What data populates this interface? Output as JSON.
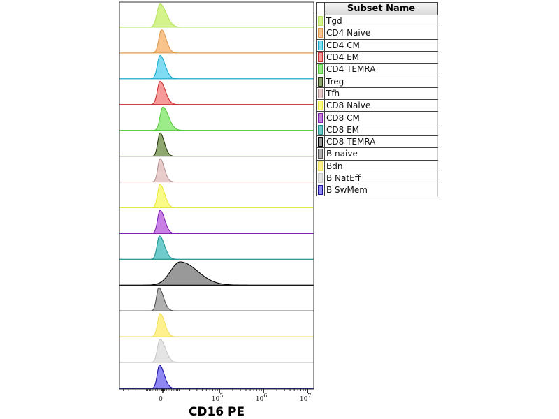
{
  "chart_data": {
    "type": "histogram-overlay",
    "xlabel": "CD16 PE",
    "x_scale": "biexponential",
    "x_ticks": [
      {
        "value": 0,
        "label": "0"
      },
      {
        "value": 100000,
        "base": "10",
        "exp": "5"
      },
      {
        "value": 1000000,
        "base": "10",
        "exp": "6"
      },
      {
        "value": 10000000,
        "base": "10",
        "exp": "7"
      }
    ],
    "legend_title": "Subset Name",
    "series": [
      {
        "name": "Tgd",
        "mode": -1500,
        "left_sd": 0.16,
        "right_sd": 0.32,
        "fill": "#d4f38a",
        "line": "#b5e35a"
      },
      {
        "name": "CD4 Naive",
        "mode": -700,
        "left_sd": 0.14,
        "right_sd": 0.24,
        "fill": "#f8c48c",
        "line": "#e0964a"
      },
      {
        "name": "CD4 CM",
        "mode": -1500,
        "left_sd": 0.14,
        "right_sd": 0.26,
        "fill": "#7fdcf2",
        "line": "#1aa8cc"
      },
      {
        "name": "CD4 EM",
        "mode": -1500,
        "left_sd": 0.14,
        "right_sd": 0.27,
        "fill": "#f79a9a",
        "line": "#c83030"
      },
      {
        "name": "CD4 TEMRA",
        "mode": 0,
        "left_sd": 0.14,
        "right_sd": 0.3,
        "fill": "#9dec8a",
        "line": "#55c83a"
      },
      {
        "name": "Treg",
        "mode": -1500,
        "left_sd": 0.12,
        "right_sd": 0.22,
        "fill": "#8ea870",
        "line": "#2a3a10"
      },
      {
        "name": "Tfh",
        "mode": -1500,
        "left_sd": 0.12,
        "right_sd": 0.22,
        "fill": "#e8cccc",
        "line": "#b09090"
      },
      {
        "name": "CD8 Naive",
        "mode": -1500,
        "left_sd": 0.13,
        "right_sd": 0.24,
        "fill": "#fafa88",
        "line": "#e8e840"
      },
      {
        "name": "CD8 CM",
        "mode": -1500,
        "left_sd": 0.13,
        "right_sd": 0.24,
        "fill": "#c880e4",
        "line": "#8020b0"
      },
      {
        "name": "CD8 EM",
        "mode": -1800,
        "left_sd": 0.13,
        "right_sd": 0.26,
        "fill": "#70cccc",
        "line": "#209090"
      },
      {
        "name": "CD8 TEMRA",
        "mode": 10800,
        "left_sd": 0.5,
        "right_sd": 0.9,
        "fill": "#999999",
        "line": "#000000"
      },
      {
        "name": "B naive",
        "mode": -2200,
        "left_sd": 0.12,
        "right_sd": 0.24,
        "fill": "#b0b0b0",
        "line": "#505050"
      },
      {
        "name": "Bdn",
        "mode": -1500,
        "left_sd": 0.13,
        "right_sd": 0.24,
        "fill": "#fff28e",
        "line": "#f0e060"
      },
      {
        "name": "B NatEff",
        "mode": -1500,
        "left_sd": 0.14,
        "right_sd": 0.28,
        "fill": "#e4e4e4",
        "line": "#c8c8c8"
      },
      {
        "name": "B SwMem",
        "mode": -1800,
        "left_sd": 0.12,
        "right_sd": 0.24,
        "fill": "#9088f2",
        "line": "#1a10a0"
      }
    ]
  }
}
